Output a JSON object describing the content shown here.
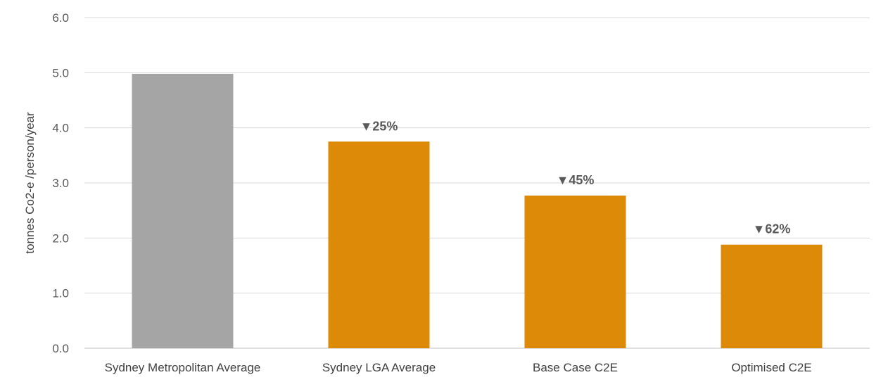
{
  "chart_data": {
    "type": "bar",
    "title": "",
    "xlabel": "",
    "ylabel": "tonnes Co2-e /person/year",
    "ylim": [
      0,
      6
    ],
    "yticks": [
      "0.0",
      "1.0",
      "2.0",
      "3.0",
      "4.0",
      "5.0",
      "6.0"
    ],
    "grid": true,
    "categories": [
      "Sydney Metropolitan Average",
      "Sydney LGA Average",
      "Base Case C2E",
      "Optimised C2E"
    ],
    "values": [
      4.98,
      3.75,
      2.77,
      1.88
    ],
    "data_labels": [
      "",
      "▼25%",
      "▼45%",
      "▼62%"
    ],
    "colors": [
      "#a5a5a5",
      "#dc8a08",
      "#dc8a08",
      "#dc8a08"
    ]
  }
}
